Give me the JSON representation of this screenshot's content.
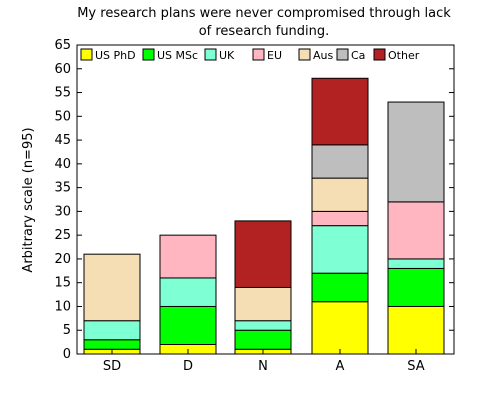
{
  "chart_data": {
    "type": "bar",
    "stacked": true,
    "title_lines": [
      "My research plans were never compromised through lack",
      "of research funding."
    ],
    "xlabel": "",
    "ylabel": "Arbitrary scale (n=95)",
    "categories": [
      "SD",
      "D",
      "N",
      "A",
      "SA"
    ],
    "ylim": [
      0,
      65
    ],
    "yticks": [
      0,
      5,
      10,
      15,
      20,
      25,
      30,
      35,
      40,
      45,
      50,
      55,
      60,
      65
    ],
    "grid": false,
    "legend_position": "top-inside",
    "series": [
      {
        "name": "US PhD",
        "color": "#ffff00",
        "values": [
          1,
          2,
          1,
          11,
          10
        ]
      },
      {
        "name": "US MSc",
        "color": "#00ff00",
        "values": [
          2,
          8,
          4,
          6,
          8
        ]
      },
      {
        "name": "UK",
        "color": "#7fffd4",
        "values": [
          4,
          6,
          2,
          10,
          2
        ]
      },
      {
        "name": "EU",
        "color": "#ffb6c1",
        "values": [
          0,
          9,
          0,
          3,
          12
        ]
      },
      {
        "name": "Aus",
        "color": "#f5deb3",
        "values": [
          14,
          0,
          7,
          7,
          0
        ]
      },
      {
        "name": "Ca",
        "color": "#bebebe",
        "values": [
          0,
          0,
          0,
          7,
          21
        ]
      },
      {
        "name": "Other",
        "color": "#b22222",
        "values": [
          0,
          0,
          14,
          14,
          0
        ]
      }
    ]
  }
}
